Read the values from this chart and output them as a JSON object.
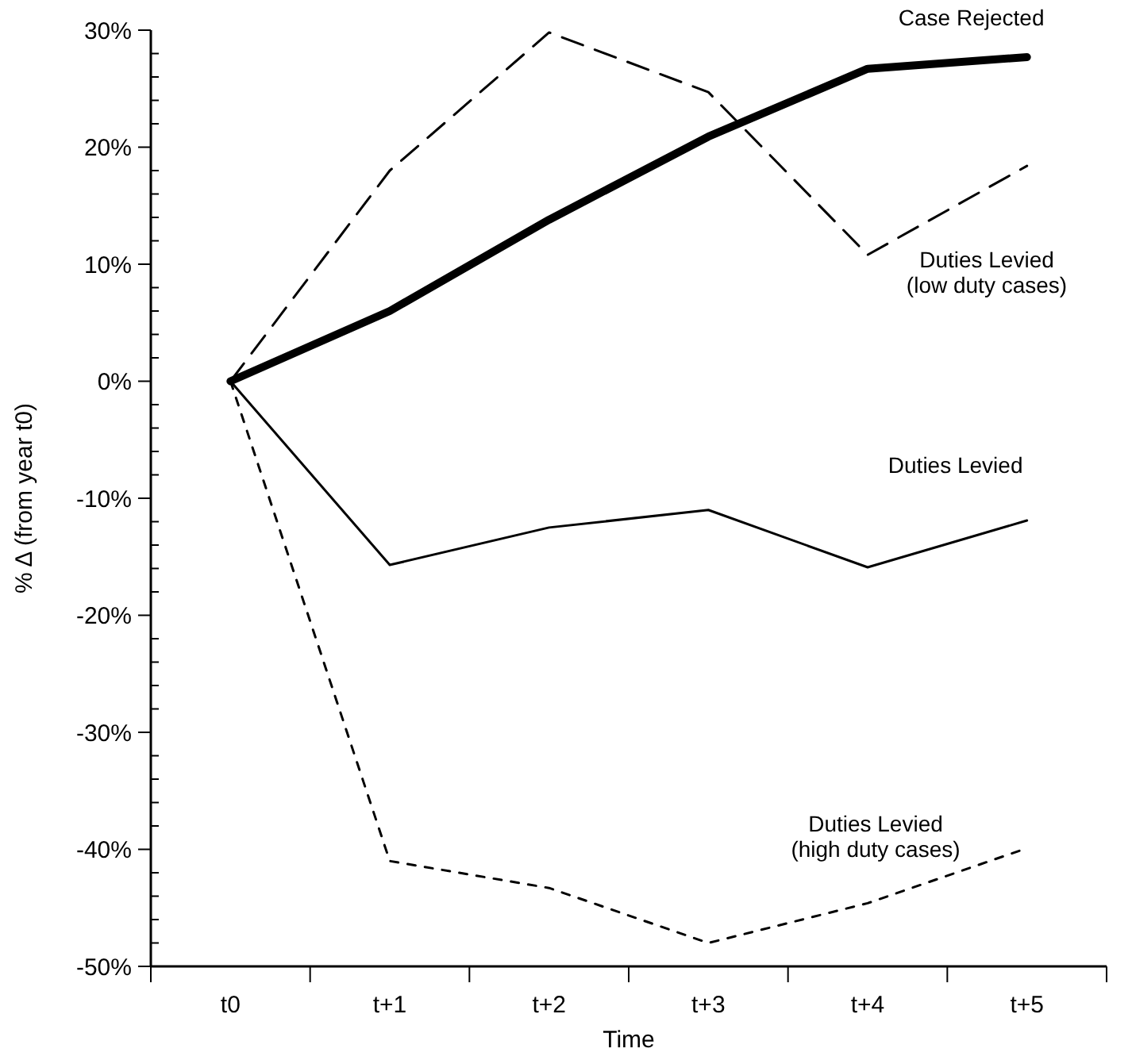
{
  "chart_data": {
    "type": "line",
    "xlabel": "Time",
    "ylabel": "% Δ (from year t0)",
    "categories": [
      "t0",
      "t+1",
      "t+2",
      "t+3",
      "t+4",
      "t+5"
    ],
    "ylim": [
      -50,
      30
    ],
    "yticks": [
      {
        "value": -50,
        "label": "-50%"
      },
      {
        "value": -48,
        "label": null
      },
      {
        "value": -46,
        "label": null
      },
      {
        "value": -44,
        "label": null
      },
      {
        "value": -42,
        "label": null
      },
      {
        "value": -40,
        "label": "-40%"
      },
      {
        "value": -38,
        "label": null
      },
      {
        "value": -36,
        "label": null
      },
      {
        "value": -34,
        "label": null
      },
      {
        "value": -32,
        "label": null
      },
      {
        "value": -30,
        "label": "-30%"
      },
      {
        "value": -28,
        "label": null
      },
      {
        "value": -26,
        "label": null
      },
      {
        "value": -24,
        "label": null
      },
      {
        "value": -22,
        "label": null
      },
      {
        "value": -20,
        "label": "-20%"
      },
      {
        "value": -18,
        "label": null
      },
      {
        "value": -16,
        "label": null
      },
      {
        "value": -14,
        "label": null
      },
      {
        "value": -12,
        "label": null
      },
      {
        "value": -10,
        "label": "-10%"
      },
      {
        "value": -8,
        "label": null
      },
      {
        "value": -6,
        "label": null
      },
      {
        "value": -4,
        "label": null
      },
      {
        "value": -2,
        "label": null
      },
      {
        "value": 0,
        "label": "0%"
      },
      {
        "value": 2,
        "label": null
      },
      {
        "value": 4,
        "label": null
      },
      {
        "value": 6,
        "label": null
      },
      {
        "value": 8,
        "label": null
      },
      {
        "value": 10,
        "label": "10%"
      },
      {
        "value": 12,
        "label": null
      },
      {
        "value": 14,
        "label": null
      },
      {
        "value": 16,
        "label": null
      },
      {
        "value": 18,
        "label": null
      },
      {
        "value": 20,
        "label": "20%"
      },
      {
        "value": 22,
        "label": null
      },
      {
        "value": 24,
        "label": null
      },
      {
        "value": 26,
        "label": null
      },
      {
        "value": 28,
        "label": null
      },
      {
        "value": 30,
        "label": "30%"
      }
    ],
    "grid": false,
    "marker": "none",
    "series": [
      {
        "name": "Case Rejected",
        "color": "#000000",
        "line_style": "solid",
        "values": [
          0,
          6,
          13.8,
          20.9,
          26.7,
          27.7
        ]
      },
      {
        "name": "Duties Levied\n(low duty cases)",
        "color": "#000000",
        "line_style": "dashed",
        "values": [
          0,
          18,
          29.8,
          24.7,
          10.8,
          18.4
        ]
      },
      {
        "name": "Duties Levied",
        "color": "#000000",
        "line_style": "solid",
        "values": [
          0,
          -15.7,
          -12.5,
          -11,
          -15.9,
          -11.9
        ]
      },
      {
        "name": "Duties Levied\n(high duty cases)",
        "color": "#000000",
        "line_style": "dotted",
        "values": [
          0,
          -41,
          -43.3,
          -48,
          -44.6,
          -39.9
        ]
      }
    ]
  }
}
